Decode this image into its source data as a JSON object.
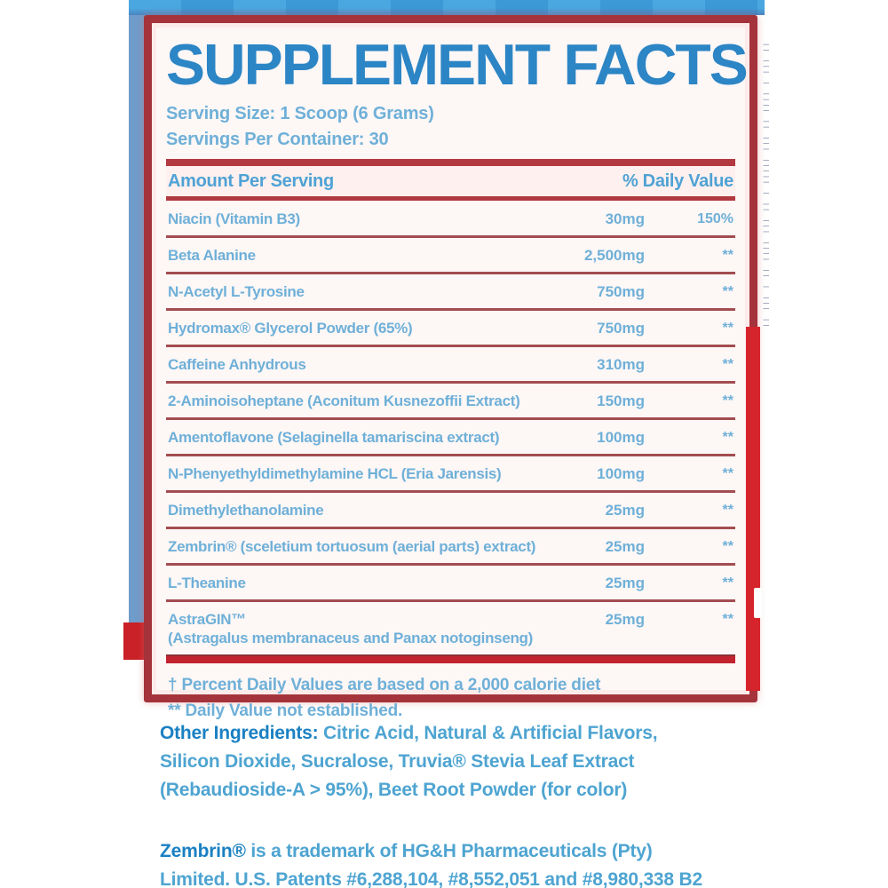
{
  "panel": {
    "title": "SUPPLEMENT FACTS",
    "serving_size": "Serving Size: 1 Scoop (6 Grams)",
    "servings_per_container": "Servings Per Container: 30",
    "columns": {
      "amount_header": "Amount Per Serving",
      "daily_value_header": "% Daily Value"
    },
    "rows": [
      {
        "name": "Niacin (Vitamin B3)",
        "amount": "30mg",
        "dv": "150%"
      },
      {
        "name": "Beta Alanine",
        "amount": "2,500mg",
        "dv": "**"
      },
      {
        "name": "N-Acetyl L-Tyrosine",
        "amount": "750mg",
        "dv": "**"
      },
      {
        "name": "Hydromax® Glycerol Powder (65%)",
        "amount": "750mg",
        "dv": "**"
      },
      {
        "name": "Caffeine Anhydrous",
        "amount": "310mg",
        "dv": "**"
      },
      {
        "name": "2-Aminoisoheptane (Aconitum Kusnezoffii Extract)",
        "amount": "150mg",
        "dv": "**"
      },
      {
        "name": "Amentoflavone (Selaginella tamariscina extract)",
        "amount": "100mg",
        "dv": "**"
      },
      {
        "name": "N-Phenyethyldimethylamine HCL (Eria Jarensis)",
        "amount": "100mg",
        "dv": "**"
      },
      {
        "name": "Dimethylethanolamine",
        "amount": "25mg",
        "dv": "**"
      },
      {
        "name": "Zembrin® (sceletium tortuosum (aerial parts) extract)",
        "amount": "25mg",
        "dv": "**"
      },
      {
        "name": "L-Theanine",
        "amount": "25mg",
        "dv": "**"
      },
      {
        "name": "AstraGIN™",
        "name_line2": "(Astragalus membranaceus and Panax notoginseng)",
        "amount": "25mg",
        "dv": "**"
      }
    ],
    "footnotes": [
      "† Percent Daily Values are based on a 2,000 calorie diet",
      "** Daily Value not established."
    ]
  },
  "other_ingredients": {
    "label": "Other Ingredients:",
    "line1_rest": " Citric Acid, Natural & Artificial Flavors,",
    "line2": "Silicon Dioxide, Sucralose, Truvia® Stevia Leaf Extract",
    "line3": "(Rebaudioside-A > 95%), Beet Root Powder (for color)"
  },
  "trademark": {
    "label": "Zembrin®",
    "line1_rest": " is a trademark of HG&H Pharmaceuticals (Pty)",
    "line2": "Limited. U.S. Patents #6,288,104, #8,552,051 and #8,980,338 B2"
  },
  "decor": {
    "microtext_marks": "|| ||| | |||| || ||| ||||| | || ||| |||| || | ||| ||",
    "colors": {
      "panel_border": "#a4333b",
      "divider_dark": "#b23940",
      "separator": "#a34d50",
      "divider_bright": "#c2232e",
      "panel_bg": "#fdf7f6",
      "panel_inner_glow": "#fcebe9",
      "title_blue": "#2c85c5",
      "text_blue": "#6fb0d8",
      "text_blue_bold": "#4fa2d5",
      "body_blue": "#4ea4d1",
      "body_blue_bold": "#1a80c2",
      "strip_blue_light": "#4ba7e0",
      "strip_blue_dark": "#3c99d6",
      "left_strip_blue": "#6f9ccb",
      "red_block": "#c92127",
      "red_bar": "#d6242c",
      "microtext": "#44597e"
    }
  }
}
